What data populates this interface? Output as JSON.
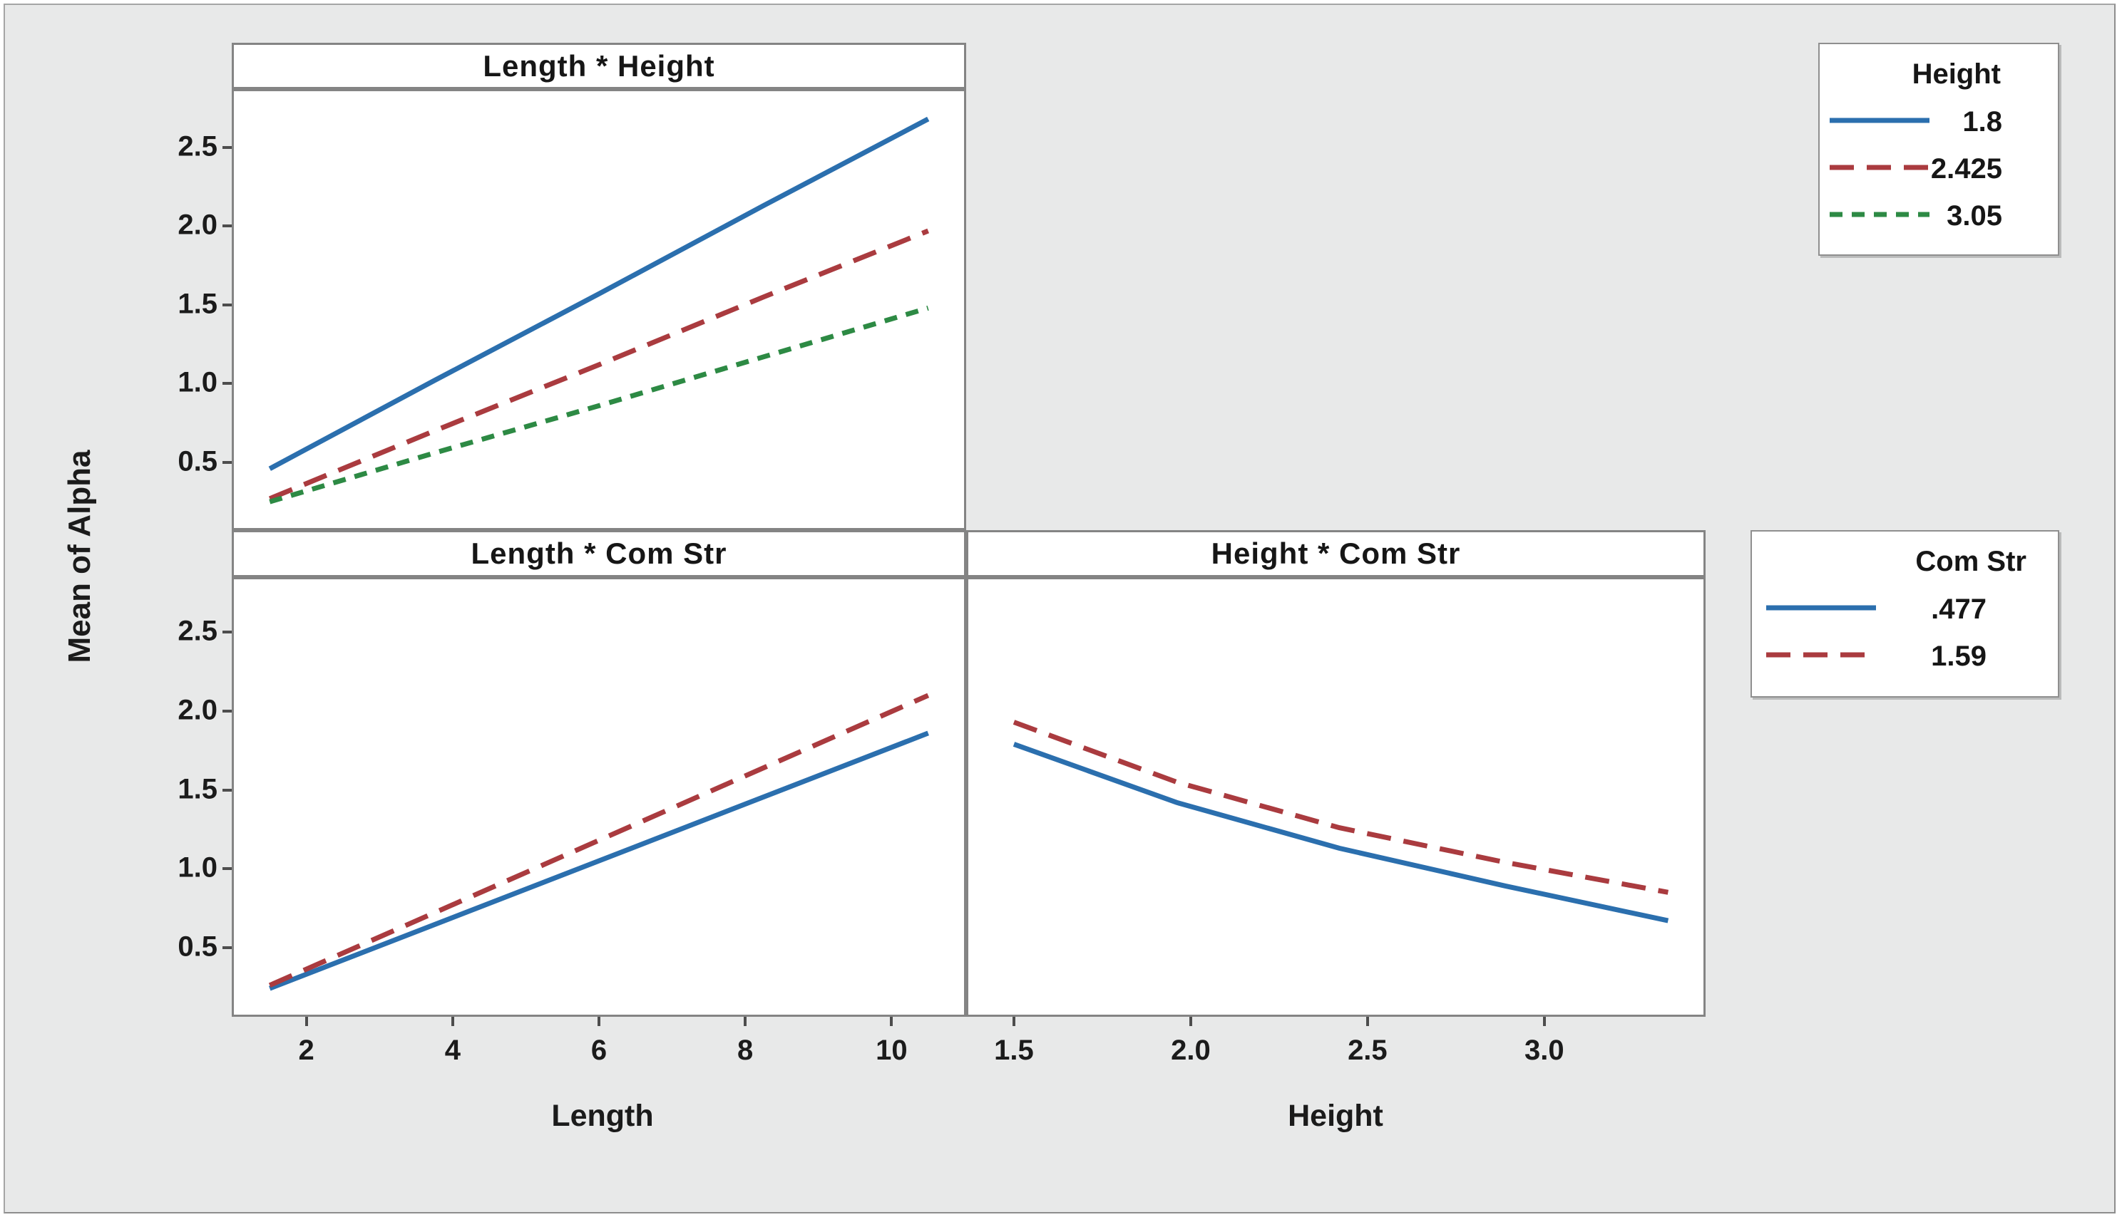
{
  "window": {
    "background": "#e8e9e9",
    "plot_background": "#ffffff",
    "border_color": "#848484"
  },
  "ylabel": "Mean of Alpha",
  "colors": {
    "blue": "#2B6FAE",
    "red": "#AA3B3F",
    "green": "#2D8A44"
  },
  "chart_data": [
    {
      "type": "line",
      "title": "Length * Height",
      "xlabel": "",
      "x_variable": "Length",
      "group_variable": "Height",
      "xlim": [
        0.98,
        11.02
      ],
      "ylim": [
        0.07,
        2.87
      ],
      "grid": false,
      "xticks": {
        "values": [],
        "labels": []
      },
      "yticks": {
        "values": [
          0.5,
          1.0,
          1.5,
          2.0,
          2.5
        ],
        "labels": [
          "0.5",
          "1.0",
          "1.5",
          "2.0",
          "2.5"
        ]
      },
      "series": [
        {
          "name": "1.8",
          "color": "#2B6FAE",
          "dash": "solid",
          "x": [
            1.5,
            3.75,
            6.0,
            8.25,
            10.5
          ],
          "y": [
            0.46,
            1.02,
            1.57,
            2.13,
            2.68
          ]
        },
        {
          "name": "2.425",
          "color": "#AA3B3F",
          "dash": "long-dash",
          "x": [
            1.5,
            3.75,
            6.0,
            8.25,
            10.5
          ],
          "y": [
            0.27,
            0.7,
            1.12,
            1.55,
            1.97
          ]
        },
        {
          "name": "3.05",
          "color": "#2D8A44",
          "dash": "short-dash",
          "x": [
            1.5,
            3.75,
            6.0,
            8.25,
            10.5
          ],
          "y": [
            0.25,
            0.56,
            0.86,
            1.17,
            1.48
          ]
        }
      ]
    },
    {
      "type": "line",
      "title": "Length * Com Str",
      "xlabel": "Length",
      "x_variable": "Length",
      "group_variable": "Com Str",
      "xlim": [
        0.98,
        11.02
      ],
      "ylim": [
        0.06,
        2.85
      ],
      "grid": false,
      "xticks": {
        "values": [
          2,
          4,
          6,
          8,
          10
        ],
        "labels": [
          "2",
          "4",
          "6",
          "8",
          "10"
        ]
      },
      "yticks": {
        "values": [
          0.5,
          1.0,
          1.5,
          2.0,
          2.5
        ],
        "labels": [
          "0.5",
          "1.0",
          "1.5",
          "2.0",
          "2.5"
        ]
      },
      "series": [
        {
          "name": ".477",
          "color": "#2B6FAE",
          "dash": "solid",
          "x": [
            1.5,
            6.0,
            10.5
          ],
          "y": [
            0.24,
            1.05,
            1.86
          ]
        },
        {
          "name": "1.59",
          "color": "#AA3B3F",
          "dash": "long-dash",
          "x": [
            1.5,
            6.0,
            10.5
          ],
          "y": [
            0.26,
            1.18,
            2.1
          ]
        }
      ]
    },
    {
      "type": "line",
      "title": "Height * Com Str",
      "xlabel": "Height",
      "x_variable": "Height",
      "group_variable": "Com Str",
      "xlim": [
        1.365,
        3.456
      ],
      "ylim": [
        0.06,
        2.85
      ],
      "grid": false,
      "xticks": {
        "values": [
          1.5,
          2.0,
          2.5,
          3.0
        ],
        "labels": [
          "1.5",
          "2.0",
          "2.5",
          "3.0"
        ]
      },
      "yticks": {
        "values": [],
        "labels": []
      },
      "series": [
        {
          "name": ".477",
          "color": "#2B6FAE",
          "dash": "solid",
          "x": [
            1.5,
            1.96,
            2.42,
            2.89,
            3.35
          ],
          "y": [
            1.79,
            1.42,
            1.13,
            0.89,
            0.67
          ]
        },
        {
          "name": "1.59",
          "color": "#AA3B3F",
          "dash": "long-dash",
          "x": [
            1.5,
            1.96,
            2.42,
            2.89,
            3.35
          ],
          "y": [
            1.93,
            1.55,
            1.26,
            1.04,
            0.85
          ]
        }
      ]
    }
  ],
  "legends": [
    {
      "title": "Height",
      "entries": [
        {
          "label": "1.8",
          "color": "#2B6FAE",
          "dash": "solid"
        },
        {
          "label": "2.425",
          "color": "#AA3B3F",
          "dash": "long-dash"
        },
        {
          "label": "3.05",
          "color": "#2D8A44",
          "dash": "short-dash"
        }
      ]
    },
    {
      "title": "Com Str",
      "entries": [
        {
          "label": ".477",
          "color": "#2B6FAE",
          "dash": "solid"
        },
        {
          "label": "1.59",
          "color": "#AA3B3F",
          "dash": "long-dash"
        }
      ]
    }
  ]
}
